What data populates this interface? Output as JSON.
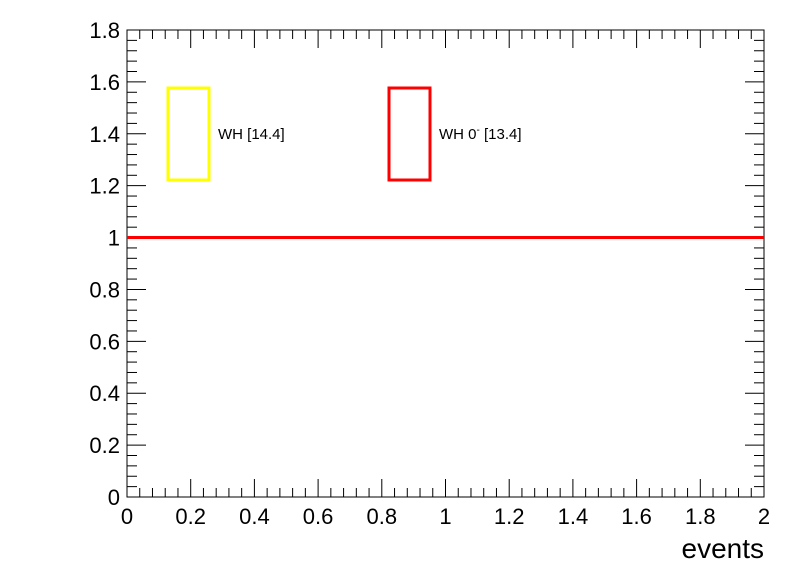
{
  "chart_data": {
    "type": "line",
    "title": "",
    "xlabel": "events",
    "ylabel": "",
    "xlim": [
      0,
      2
    ],
    "ylim": [
      0,
      1.8
    ],
    "x_ticks": [
      "0",
      "0.2",
      "0.4",
      "0.6",
      "0.8",
      "1",
      "1.2",
      "1.4",
      "1.6",
      "1.8",
      "2"
    ],
    "y_ticks": [
      "0",
      "0.2",
      "0.4",
      "0.6",
      "0.8",
      "1",
      "1.2",
      "1.4",
      "1.6",
      "1.8"
    ],
    "grid": false,
    "legend_position": "top",
    "series": [
      {
        "name": "WH [14.4]",
        "color": "#ffff00",
        "x": [],
        "y": []
      },
      {
        "name": "WH 0",
        "superscript": "-",
        "name_suffix": " [13.4]",
        "color": "#ff0000",
        "x": [
          0,
          2
        ],
        "y": [
          1,
          1
        ]
      }
    ]
  }
}
